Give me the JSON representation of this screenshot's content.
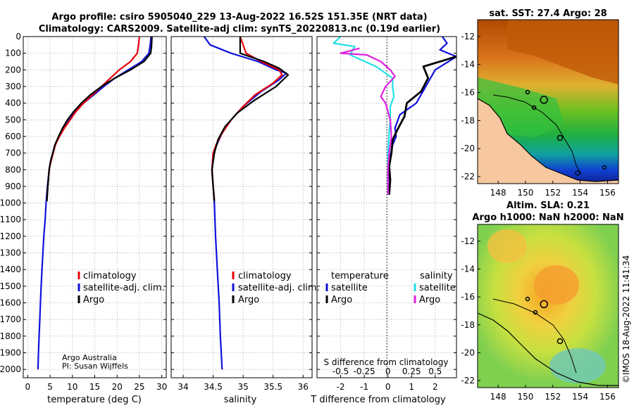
{
  "header": {
    "title_line1": "Argo profile: csiro 5905040_229 13-Aug-2022 16.52S 151.35E (NRT data)",
    "title_line2": "Climatology: CARS2009. Satellite-adj clim: synTS_20220813.nc (0.19d earlier)"
  },
  "credits": {
    "line1": "Argo Australia",
    "line2": "PI: Susan Wijffels",
    "side": "©IMOS 18-Aug-2022 11:41:34"
  },
  "colors": {
    "argo": "#000000",
    "climatology": "#e8000b",
    "satellite": "#1010dd",
    "sat_salinity": "#22e0e8",
    "argo_salinity": "#e020e0"
  },
  "legends": {
    "temp": [
      "climatology",
      "satellite-adj. clim.",
      "Argo"
    ],
    "sal": [
      "climatology",
      "satellite-adj. clim.",
      "Argo"
    ],
    "diff": {
      "temperature": "temperature",
      "salinity": "salinity",
      "satellite": "satellite",
      "argo": "Argo"
    }
  },
  "chart_data": [
    {
      "id": "temperature",
      "type": "line",
      "xlabel": "temperature (deg C)",
      "ylabel": "",
      "xlim": [
        -1,
        31
      ],
      "ylim": [
        2050,
        0
      ],
      "xticks": [
        0,
        5,
        10,
        15,
        20,
        25,
        30
      ],
      "yticks": [
        0,
        100,
        200,
        300,
        400,
        500,
        600,
        700,
        800,
        900,
        1000,
        1100,
        1200,
        1300,
        1400,
        1500,
        1600,
        1700,
        1800,
        1900,
        2000
      ],
      "series": [
        {
          "name": "satellite-adj. clim.",
          "color": "#1010dd",
          "width": 2.2,
          "points": [
            [
              27.6,
              0
            ],
            [
              27.4,
              50
            ],
            [
              27.1,
              100
            ],
            [
              25.5,
              150
            ],
            [
              22.5,
              200
            ],
            [
              19.5,
              250
            ],
            [
              17,
              300
            ],
            [
              14.8,
              350
            ],
            [
              12.5,
              400
            ],
            [
              10.6,
              450
            ],
            [
              9.2,
              500
            ],
            [
              8,
              550
            ],
            [
              7,
              600
            ],
            [
              6.1,
              650
            ],
            [
              5.6,
              700
            ],
            [
              5.1,
              750
            ],
            [
              4.8,
              800
            ],
            [
              4.4,
              900
            ],
            [
              4.1,
              1000
            ],
            [
              3.9,
              1100
            ],
            [
              3.6,
              1200
            ],
            [
              3.4,
              1300
            ],
            [
              3.2,
              1400
            ],
            [
              3.0,
              1500
            ],
            [
              2.85,
              1600
            ],
            [
              2.7,
              1700
            ],
            [
              2.55,
              1800
            ],
            [
              2.4,
              1900
            ],
            [
              2.3,
              2000
            ]
          ]
        },
        {
          "name": "climatology",
          "color": "#e8000b",
          "width": 2.2,
          "points": [
            [
              25,
              0
            ],
            [
              24.8,
              50
            ],
            [
              24.5,
              100
            ],
            [
              23,
              150
            ],
            [
              20.5,
              200
            ],
            [
              18.5,
              250
            ],
            [
              16.5,
              300
            ],
            [
              14.5,
              350
            ],
            [
              12.5,
              400
            ],
            [
              10.8,
              450
            ],
            [
              9.5,
              500
            ],
            [
              8.2,
              550
            ],
            [
              7.1,
              600
            ],
            [
              6.2,
              650
            ],
            [
              5.7,
              700
            ],
            [
              5.2,
              750
            ],
            [
              4.8,
              800
            ],
            [
              4.5,
              900
            ],
            [
              4.3,
              980
            ]
          ]
        },
        {
          "name": "Argo",
          "color": "#000000",
          "width": 2.2,
          "points": [
            [
              27.8,
              0
            ],
            [
              27.7,
              60
            ],
            [
              27.5,
              100
            ],
            [
              26,
              150
            ],
            [
              23,
              200
            ],
            [
              19.5,
              250
            ],
            [
              16.5,
              300
            ],
            [
              14,
              350
            ],
            [
              12,
              400
            ],
            [
              10.3,
              450
            ],
            [
              8.9,
              500
            ],
            [
              7.8,
              550
            ],
            [
              6.9,
              600
            ],
            [
              6.1,
              650
            ],
            [
              5.6,
              700
            ],
            [
              5.1,
              750
            ],
            [
              4.8,
              800
            ],
            [
              4.5,
              900
            ],
            [
              4.3,
              990
            ]
          ]
        }
      ]
    },
    {
      "id": "salinity",
      "type": "line",
      "xlabel": "salinity",
      "ylabel": "",
      "xlim": [
        33.8,
        36.15
      ],
      "ylim": [
        2050,
        0
      ],
      "xticks": [
        34,
        34.5,
        35,
        35.5,
        36
      ],
      "series": [
        {
          "name": "satellite-adj. clim.",
          "color": "#1010dd",
          "width": 2.2,
          "points": [
            [
              34.35,
              0
            ],
            [
              34.45,
              50
            ],
            [
              34.8,
              100
            ],
            [
              35.25,
              150
            ],
            [
              35.55,
              200
            ],
            [
              35.72,
              220
            ],
            [
              35.6,
              260
            ],
            [
              35.3,
              330
            ],
            [
              35.0,
              420
            ],
            [
              34.8,
              500
            ],
            [
              34.65,
              580
            ],
            [
              34.56,
              650
            ],
            [
              34.5,
              700
            ],
            [
              34.48,
              800
            ],
            [
              34.5,
              900
            ],
            [
              34.52,
              1000
            ],
            [
              34.54,
              1200
            ],
            [
              34.57,
              1400
            ],
            [
              34.6,
              1600
            ],
            [
              34.62,
              1800
            ],
            [
              34.65,
              2000
            ]
          ]
        },
        {
          "name": "climatology",
          "color": "#e8000b",
          "width": 2.2,
          "points": [
            [
              34.95,
              0
            ],
            [
              35.0,
              50
            ],
            [
              35.05,
              100
            ],
            [
              35.3,
              150
            ],
            [
              35.6,
              200
            ],
            [
              35.65,
              230
            ],
            [
              35.5,
              280
            ],
            [
              35.2,
              350
            ],
            [
              35.0,
              420
            ],
            [
              34.8,
              500
            ],
            [
              34.65,
              580
            ],
            [
              34.55,
              650
            ],
            [
              34.5,
              700
            ],
            [
              34.48,
              800
            ],
            [
              34.5,
              900
            ],
            [
              34.52,
              980
            ]
          ]
        },
        {
          "name": "Argo",
          "color": "#000000",
          "width": 2.2,
          "points": [
            [
              34.95,
              0
            ],
            [
              34.95,
              100
            ],
            [
              35.35,
              150
            ],
            [
              35.6,
              190
            ],
            [
              35.75,
              230
            ],
            [
              35.55,
              300
            ],
            [
              35.2,
              380
            ],
            [
              34.9,
              460
            ],
            [
              34.7,
              540
            ],
            [
              34.58,
              620
            ],
            [
              34.52,
              700
            ],
            [
              34.48,
              800
            ],
            [
              34.5,
              900
            ],
            [
              34.52,
              990
            ]
          ]
        }
      ]
    },
    {
      "id": "difference",
      "type": "line",
      "xlabel": "T difference from climatology",
      "x2label": "S difference from climatology",
      "xlim": [
        -3,
        2.9
      ],
      "ylim": [
        2050,
        0
      ],
      "xticks": [
        -2,
        -1,
        0,
        1,
        2
      ],
      "x2ticks": [
        -0.5,
        -0.25,
        0,
        0.25,
        0.5
      ],
      "x2factor": 4,
      "series": [
        {
          "name": "temperature satellite",
          "color": "#1010dd",
          "width": 2.2,
          "points": [
            [
              2.3,
              0
            ],
            [
              2.5,
              40
            ],
            [
              2.2,
              80
            ],
            [
              2.9,
              120
            ],
            [
              2.0,
              200
            ],
            [
              1.6,
              300
            ],
            [
              1.2,
              400
            ],
            [
              0.5,
              470
            ],
            [
              0.3,
              550
            ],
            [
              0.35,
              600
            ],
            [
              0.2,
              650
            ],
            [
              0.1,
              720
            ],
            [
              0.05,
              800
            ],
            [
              0.0,
              900
            ],
            [
              0.05,
              950
            ]
          ]
        },
        {
          "name": "temperature Argo",
          "color": "#000000",
          "width": 2.8,
          "points": [
            [
              2.9,
              120
            ],
            [
              1.5,
              180
            ],
            [
              1.7,
              250
            ],
            [
              1.4,
              330
            ],
            [
              0.8,
              400
            ],
            [
              0.7,
              480
            ],
            [
              0.55,
              520
            ],
            [
              0.4,
              560
            ],
            [
              0.2,
              620
            ],
            [
              0.15,
              700
            ],
            [
              0.05,
              780
            ],
            [
              0.1,
              860
            ],
            [
              0.05,
              950
            ]
          ]
        },
        {
          "name": "salinity satellite",
          "color": "#22e0e8",
          "width": 2.2,
          "points": [
            [
              -2.0,
              0
            ],
            [
              -2.3,
              40
            ],
            [
              -1.4,
              60
            ],
            [
              -1.6,
              110
            ],
            [
              -0.5,
              180
            ],
            [
              0.2,
              250
            ],
            [
              0.2,
              300
            ],
            [
              0.25,
              360
            ],
            [
              0.1,
              420
            ],
            [
              0.1,
              500
            ],
            [
              0.05,
              580
            ],
            [
              0.0,
              700
            ],
            [
              0.0,
              800
            ],
            [
              0.0,
              950
            ]
          ]
        },
        {
          "name": "salinity Argo",
          "color": "#e020e0",
          "width": 2.2,
          "points": [
            [
              -1.2,
              70
            ],
            [
              -2.0,
              100
            ],
            [
              -0.9,
              110
            ],
            [
              -0.3,
              150
            ],
            [
              0.1,
              200
            ],
            [
              0.3,
              240
            ],
            [
              -0.1,
              300
            ],
            [
              -0.3,
              360
            ],
            [
              -0.1,
              400
            ],
            [
              0.1,
              500
            ],
            [
              0.15,
              600
            ],
            [
              0.05,
              700
            ],
            [
              0.0,
              800
            ],
            [
              0.0,
              950
            ]
          ]
        }
      ]
    },
    {
      "id": "sst_map",
      "type": "heatmap",
      "title": "sat. SST: 27.4 Argo: 28",
      "xlim": [
        146.5,
        156.8
      ],
      "ylim": [
        -22.5,
        -10.8
      ],
      "xticks": [
        148,
        150,
        152,
        154,
        156
      ],
      "yticks": [
        -12,
        -14,
        -16,
        -18,
        -20,
        -22
      ],
      "marker": {
        "lon": 151.35,
        "lat": -16.52
      }
    },
    {
      "id": "sla_map",
      "type": "heatmap",
      "title": "Altim. SLA: 0.21",
      "title2": "Argo h1000: NaN h2000: NaN",
      "xlim": [
        146.5,
        156.8
      ],
      "ylim": [
        -22.5,
        -10.8
      ],
      "xticks": [
        148,
        150,
        152,
        154,
        156
      ],
      "yticks": [
        -12,
        -14,
        -16,
        -18,
        -20,
        -22
      ],
      "marker": {
        "lon": 151.35,
        "lat": -16.52
      }
    }
  ]
}
